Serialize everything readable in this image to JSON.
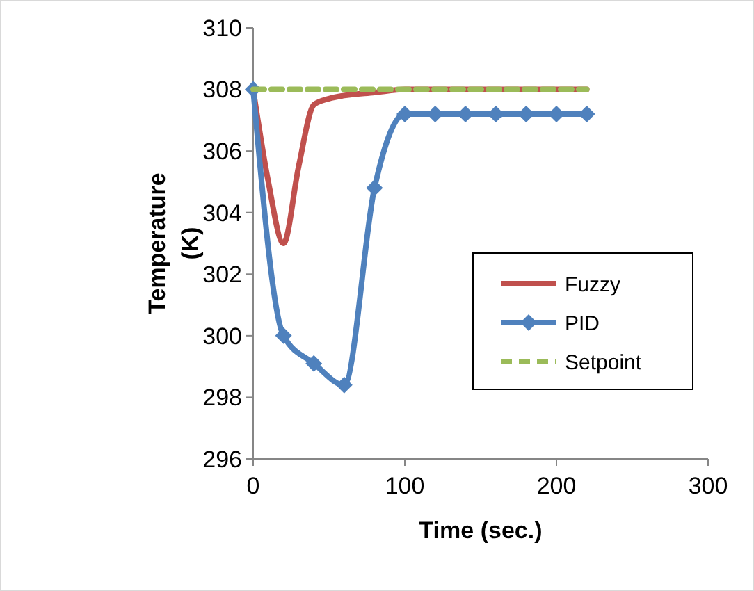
{
  "chart_data": {
    "type": "line",
    "xlabel": "Time (sec.)",
    "ylabel": "Temperature (K)",
    "xlim": [
      0,
      300
    ],
    "xticks": [
      0,
      100,
      200,
      300
    ],
    "ylim": [
      296,
      310
    ],
    "yticks": [
      296,
      298,
      300,
      302,
      304,
      306,
      308,
      310
    ],
    "legend": "right",
    "grid": false,
    "series": [
      {
        "name": "Fuzzy",
        "color": "#c0504d",
        "marker": "none",
        "line_style": "solid",
        "x": [
          0,
          10,
          20,
          30,
          40,
          50,
          60,
          80,
          100,
          120,
          140,
          160,
          180,
          200,
          220
        ],
        "values": [
          308,
          305,
          303,
          305.5,
          307.5,
          307.7,
          307.8,
          307.9,
          308,
          308,
          308,
          308,
          308,
          308,
          308
        ]
      },
      {
        "name": "PID",
        "color": "#4f81bd",
        "marker": "diamond",
        "line_style": "solid",
        "x": [
          0,
          20,
          40,
          60,
          80,
          100,
          120,
          140,
          160,
          180,
          200,
          220
        ],
        "values": [
          308,
          300,
          299.1,
          298.4,
          304.8,
          307.2,
          307.2,
          307.2,
          307.2,
          307.2,
          307.2,
          307.2
        ]
      },
      {
        "name": "Setpoint",
        "color": "#9bbb59",
        "marker": "none",
        "line_style": "dashed",
        "x": [
          0,
          220
        ],
        "values": [
          308,
          308
        ]
      }
    ]
  }
}
